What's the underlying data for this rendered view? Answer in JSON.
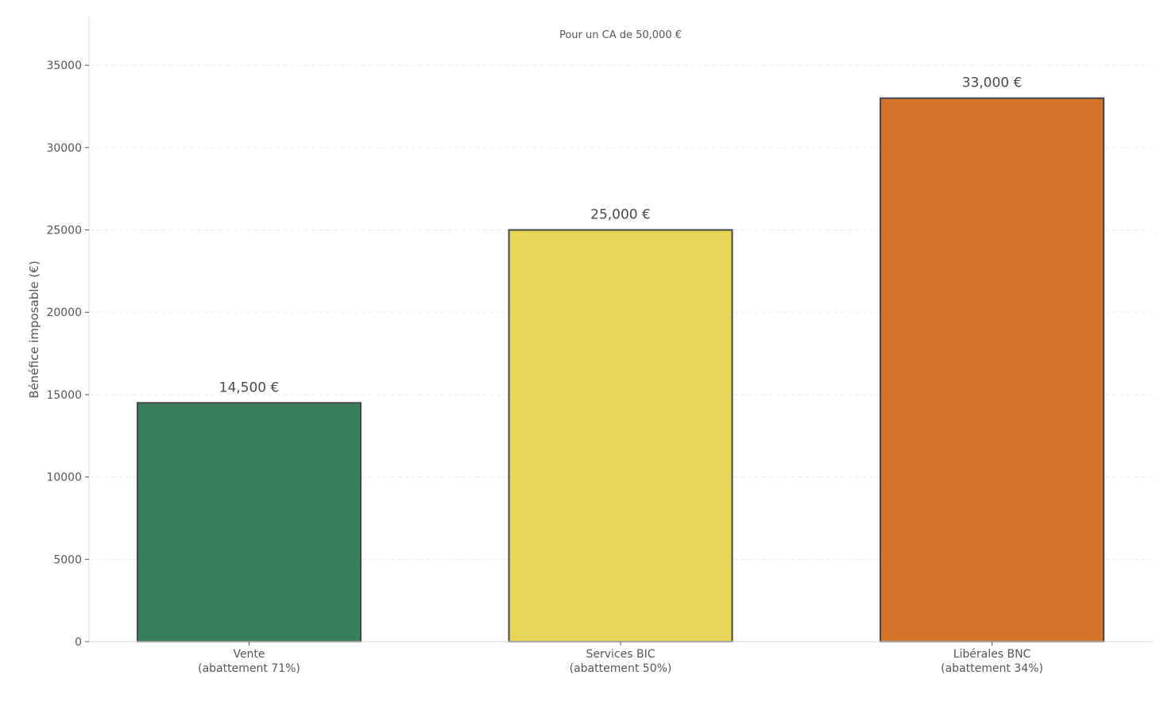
{
  "chart_data": {
    "type": "bar",
    "title": "Pour un CA de 50,000 €",
    "xlabel": "",
    "ylabel": "Bénéfice imposable (€)",
    "categories": [
      [
        "Vente",
        "(abattement 71%)"
      ],
      [
        "Services BIC",
        "(abattement 50%)"
      ],
      [
        "Libérales BNC",
        "(abattement 34%)"
      ]
    ],
    "values": [
      14500,
      25000,
      33000
    ],
    "value_labels": [
      "14,500 €",
      "25,000 €",
      "33,000 €"
    ],
    "colors": [
      "#3a7f5c",
      "#e8d456",
      "#d4742b"
    ],
    "edge_color": "#45474d",
    "yticks": [
      0,
      5000,
      10000,
      15000,
      20000,
      25000,
      30000,
      35000
    ],
    "ylim": [
      0,
      37950
    ],
    "grid": {
      "y": true,
      "style": "dashed",
      "color": "#ececec"
    },
    "legend": null
  }
}
